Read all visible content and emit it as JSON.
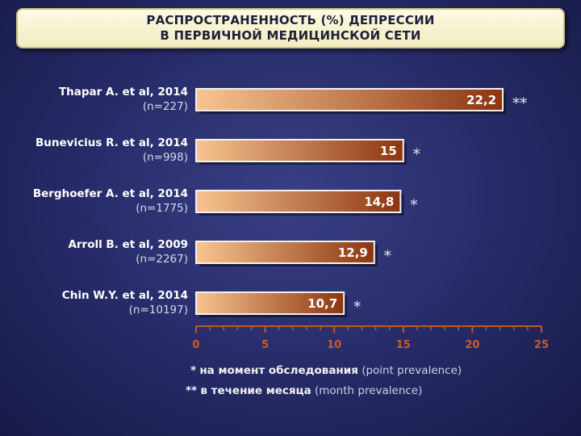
{
  "title": {
    "line1": "РАСПРОСТРАНЕННОСТЬ (%) ДЕПРЕССИИ",
    "line2": "В ПЕРВИЧНОЙ МЕДИЦИНСКОЙ СЕТИ"
  },
  "chart_data": {
    "type": "bar",
    "orientation": "horizontal",
    "xlim": [
      0,
      25
    ],
    "ticks": [
      "0",
      "5",
      "10",
      "15",
      "20",
      "25"
    ],
    "categories": [
      {
        "author": "Thapar A. et al, 2014",
        "n": "(n=227)"
      },
      {
        "author": "Bunevicius R. et al, 2014",
        "n": "(n=998)"
      },
      {
        "author": "Berghoefer A. et al, 2014",
        "n": "(n=1775)"
      },
      {
        "author": "Arroll B. et al, 2009",
        "n": "(n=2267)"
      },
      {
        "author": "Chin W.Y. et al, 2014",
        "n": "(n=10197)"
      }
    ],
    "values": [
      22.2,
      15,
      14.8,
      12.9,
      10.7
    ],
    "value_labels": [
      "22,2",
      "15",
      "14,8",
      "12,9",
      "10,7"
    ],
    "markers": [
      "**",
      "*",
      "*",
      "*",
      "*"
    ],
    "bar_color_light": "#f7c590",
    "bar_color_dark": "#8c3510",
    "grid": false
  },
  "footnotes": {
    "line1_mark": "*",
    "line1_bold": "на момент обследования",
    "line1_en": "(point prevalence)",
    "line2_mark": "**",
    "line2_bold": "в течение месяца",
    "line2_en": "(month prevalence)"
  }
}
